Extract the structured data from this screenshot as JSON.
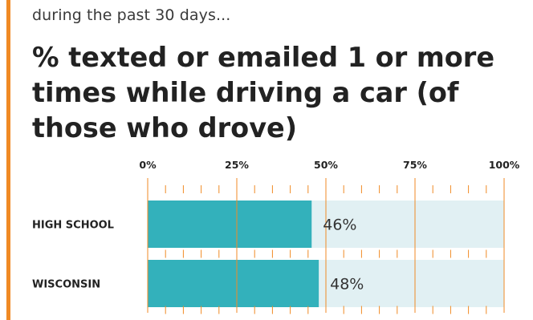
{
  "header": {
    "subtitle": "during the past 30 days...",
    "title": "% texted or emailed 1 or more times while driving a car (of those who drove)"
  },
  "colors": {
    "accent": "#f08a24",
    "bar_fill": "#33b1bb",
    "bar_track": "#e1f0f3",
    "gridline": "#f08a24",
    "label_text": "#222222"
  },
  "chart_data": {
    "type": "bar",
    "orientation": "horizontal",
    "categories": [
      "HIGH SCHOOL",
      "WISCONSIN"
    ],
    "values": [
      46,
      48
    ],
    "value_labels": [
      "46%",
      "48%"
    ],
    "xlim": [
      0,
      100
    ],
    "ticks": [
      0,
      25,
      50,
      75,
      100
    ],
    "tick_labels": [
      "0%",
      "25%",
      "50%",
      "75%",
      "100%"
    ],
    "minor_tick_step": 5,
    "grid": true,
    "legend": "none"
  }
}
